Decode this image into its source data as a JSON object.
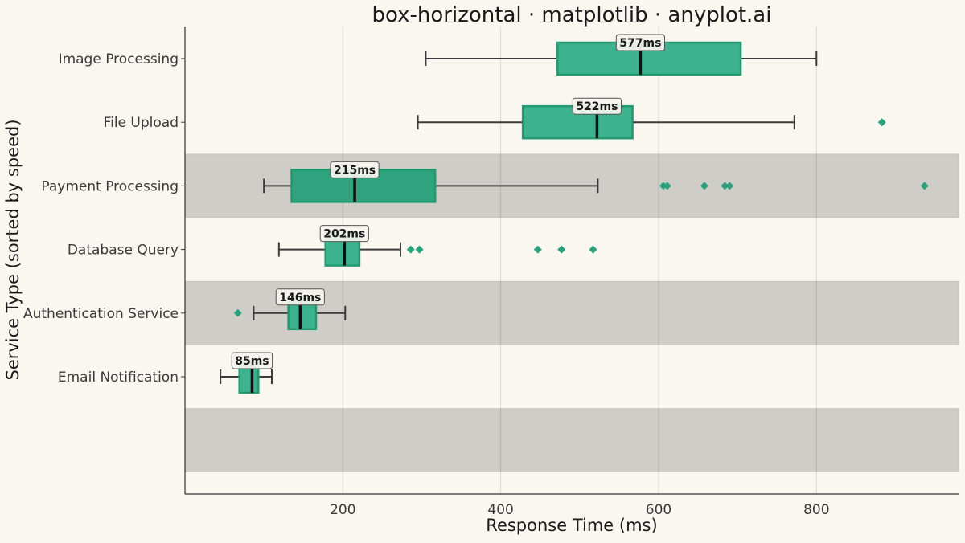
{
  "chart_data": {
    "type": "box",
    "orientation": "horizontal",
    "title": "box-horizontal · matplotlib · anyplot.ai",
    "xlabel": "Response Time (ms)",
    "ylabel": "Service Type (sorted by speed)",
    "xlim": [
      0,
      980
    ],
    "xticks": [
      200,
      400,
      600,
      800
    ],
    "grid": "vertical",
    "colors": {
      "background": "#FAF7F1",
      "band": "#CECDC7",
      "box_fill": "#3DB28E",
      "box_fill_highlight": "#2FA37E",
      "box_edge": "#22996F",
      "outlier": "#2AA07C",
      "whisker": "#3A3A3A",
      "median": "#111111"
    },
    "series": [
      {
        "category": "Image Processing",
        "whisker_low": 305,
        "q1": 472,
        "median": 577,
        "q3": 704,
        "whisker_high": 800,
        "outliers": [],
        "median_label": "577ms",
        "shaded": false,
        "highlight": false
      },
      {
        "category": "File Upload",
        "whisker_low": 295,
        "q1": 428,
        "median": 522,
        "q3": 567,
        "whisker_high": 772,
        "outliers": [
          883
        ],
        "median_label": "522ms",
        "shaded": false,
        "highlight": false
      },
      {
        "category": "Payment Processing",
        "whisker_low": 100,
        "q1": 135,
        "median": 215,
        "q3": 317,
        "whisker_high": 523,
        "outliers": [
          606,
          611,
          658,
          684,
          690,
          937
        ],
        "median_label": "215ms",
        "shaded": true,
        "highlight": true
      },
      {
        "category": "Database Query",
        "whisker_low": 119,
        "q1": 178,
        "median": 202,
        "q3": 221,
        "whisker_high": 273,
        "outliers": [
          286,
          297,
          447,
          477,
          517
        ],
        "median_label": "202ms",
        "shaded": false,
        "highlight": false
      },
      {
        "category": "Authentication Service",
        "whisker_low": 87,
        "q1": 131,
        "median": 146,
        "q3": 166,
        "whisker_high": 203,
        "outliers": [
          67
        ],
        "median_label": "146ms",
        "shaded": true,
        "highlight": false
      },
      {
        "category": "Email Notification",
        "whisker_low": 45,
        "q1": 69,
        "median": 85,
        "q3": 93,
        "whisker_high": 110,
        "outliers": [],
        "median_label": "85ms",
        "shaded": false,
        "highlight": false
      }
    ],
    "extra_band_below_last_row": true
  }
}
